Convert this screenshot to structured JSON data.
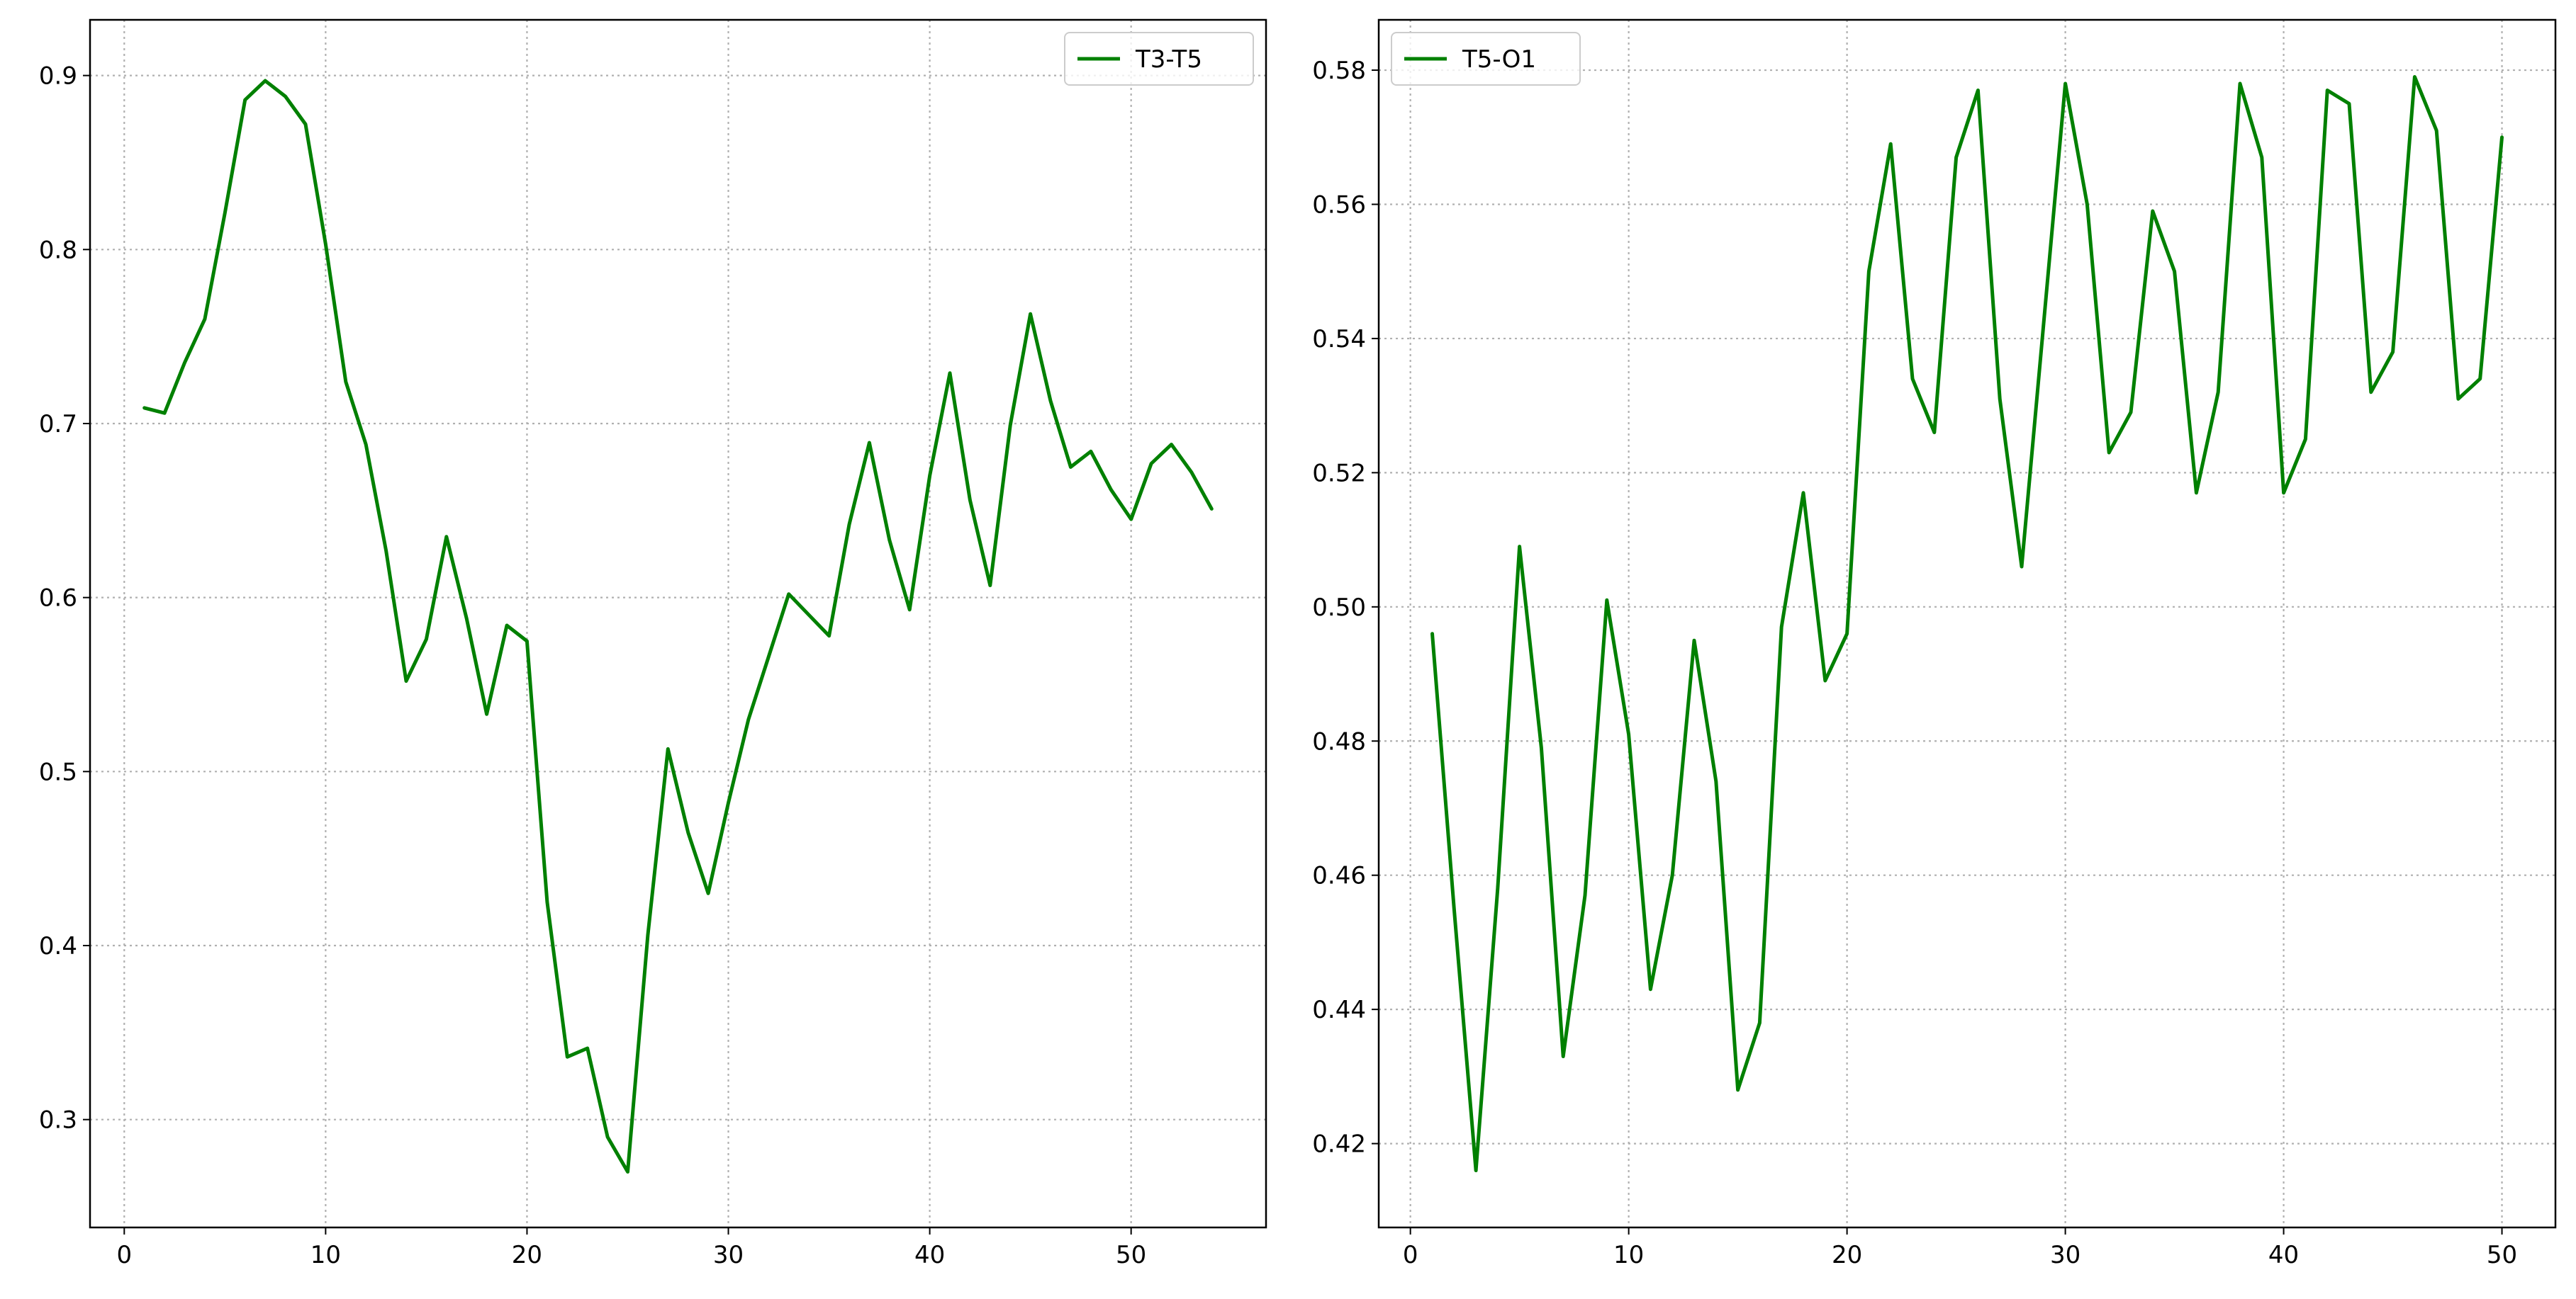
{
  "colors": {
    "series": "#008000",
    "grid": "#b0b0b0",
    "axis": "#000000"
  },
  "chart_data": [
    {
      "type": "line",
      "title": "",
      "xlabel": "",
      "ylabel": "",
      "xlim": [
        -1.7,
        56.7
      ],
      "ylim": [
        0.238,
        0.932
      ],
      "xticks": [
        0,
        10,
        20,
        30,
        40,
        50
      ],
      "xtick_labels": [
        "0",
        "10",
        "20",
        "30",
        "40",
        "50"
      ],
      "yticks": [
        0.3,
        0.4,
        0.5,
        0.6,
        0.7,
        0.8,
        0.9
      ],
      "ytick_labels": [
        "0.3",
        "0.4",
        "0.5",
        "0.6",
        "0.7",
        "0.8",
        "0.9"
      ],
      "grid": true,
      "legend_position": "top-right",
      "series": [
        {
          "name": "T3-T5",
          "color": "#008000",
          "x": [
            1,
            2,
            3,
            4,
            5,
            6,
            7,
            8,
            9,
            10,
            11,
            12,
            13,
            14,
            15,
            16,
            17,
            18,
            19,
            20,
            21,
            22,
            23,
            24,
            25,
            26,
            27,
            28,
            29,
            30,
            31,
            32,
            33,
            34,
            35,
            36,
            37,
            38,
            39,
            40,
            41,
            42,
            43,
            44,
            45,
            46,
            47,
            48,
            49,
            50,
            51,
            52,
            53,
            54
          ],
          "y": [
            0.709,
            0.706,
            0.735,
            0.76,
            0.821,
            0.886,
            0.897,
            0.888,
            0.872,
            0.803,
            0.724,
            0.688,
            0.627,
            0.552,
            0.576,
            0.635,
            0.588,
            0.533,
            0.584,
            0.575,
            0.425,
            0.336,
            0.341,
            0.29,
            0.27,
            0.406,
            0.513,
            0.465,
            0.43,
            0.482,
            0.53,
            0.566,
            0.602,
            0.59,
            0.578,
            0.642,
            0.689,
            0.633,
            0.593,
            0.67,
            0.729,
            0.656,
            0.607,
            0.699,
            0.763,
            0.713,
            0.675,
            0.684,
            0.662,
            0.645,
            0.677,
            0.688,
            0.672,
            0.651
          ]
        }
      ]
    },
    {
      "type": "line",
      "title": "",
      "xlabel": "",
      "ylabel": "",
      "xlim": [
        -1.45,
        52.45
      ],
      "ylim": [
        0.4075,
        0.5875
      ],
      "xticks": [
        0,
        10,
        20,
        30,
        40,
        50
      ],
      "xtick_labels": [
        "0",
        "10",
        "20",
        "30",
        "40",
        "50"
      ],
      "yticks": [
        0.42,
        0.44,
        0.46,
        0.48,
        0.5,
        0.52,
        0.54,
        0.56,
        0.58
      ],
      "ytick_labels": [
        "0.42",
        "0.44",
        "0.46",
        "0.48",
        "0.50",
        "0.52",
        "0.54",
        "0.56",
        "0.58"
      ],
      "grid": true,
      "legend_position": "top-left",
      "series": [
        {
          "name": "T5-O1",
          "color": "#008000",
          "x": [
            1,
            2,
            3,
            4,
            5,
            6,
            7,
            8,
            9,
            10,
            11,
            12,
            13,
            14,
            15,
            16,
            17,
            18,
            19,
            20,
            21,
            22,
            23,
            24,
            25,
            26,
            27,
            28,
            29,
            30,
            31,
            32,
            33,
            34,
            35,
            36,
            37,
            38,
            39,
            40,
            41,
            42,
            43,
            44,
            45,
            46,
            47,
            48,
            49,
            50
          ],
          "y": [
            0.496,
            0.455,
            0.416,
            0.458,
            0.509,
            0.479,
            0.433,
            0.457,
            0.501,
            0.481,
            0.443,
            0.46,
            0.495,
            0.474,
            0.428,
            0.438,
            0.497,
            0.517,
            0.489,
            0.496,
            0.55,
            0.569,
            0.534,
            0.526,
            0.567,
            0.577,
            0.531,
            0.506,
            0.542,
            0.578,
            0.56,
            0.523,
            0.529,
            0.559,
            0.55,
            0.517,
            0.532,
            0.578,
            0.567,
            0.517,
            0.525,
            0.577,
            0.575,
            0.532,
            0.538,
            0.579,
            0.571,
            0.531,
            0.534,
            0.57
          ]
        }
      ]
    }
  ]
}
